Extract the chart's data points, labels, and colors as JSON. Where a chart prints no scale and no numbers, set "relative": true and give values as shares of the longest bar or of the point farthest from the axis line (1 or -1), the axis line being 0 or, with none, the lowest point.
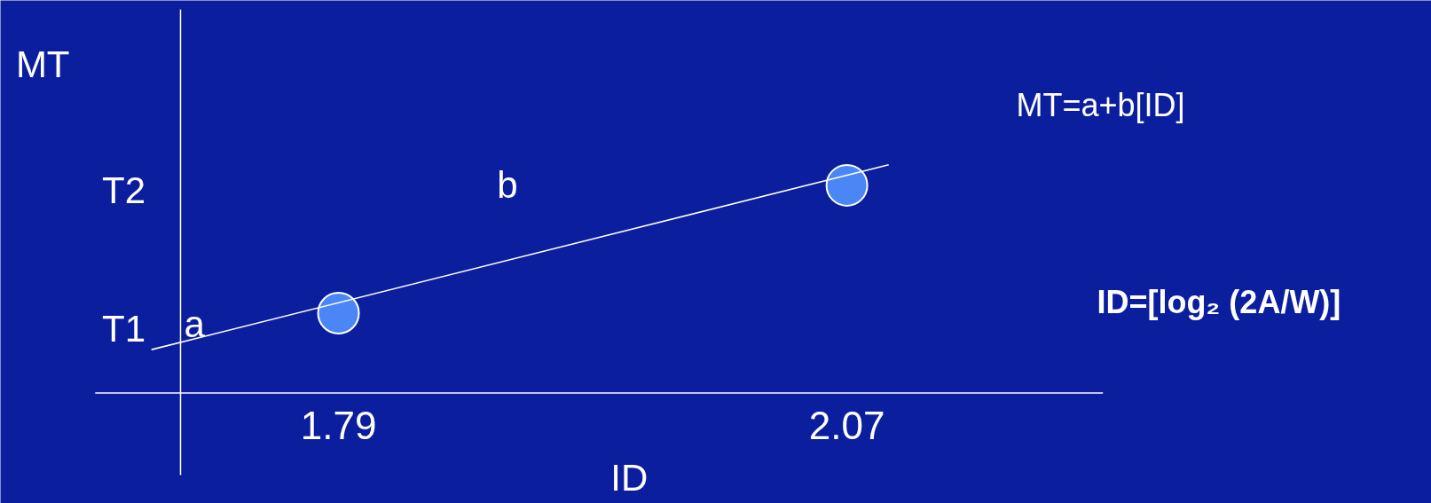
{
  "chart_data": {
    "type": "scatter",
    "relative": true,
    "xlabel": "ID",
    "ylabel": "MT",
    "xlim": [
      1.656,
      2.211
    ],
    "xticks": [
      1.79,
      2.07
    ],
    "series": [
      {
        "marker": "circle",
        "color": "#4a86f5",
        "x": [
          1.79,
          2.07
        ],
        "values": [
          0.35,
          0.91
        ]
      },
      {
        "type": "line",
        "color": "#ffffff",
        "x": [
          1.687,
          2.093
        ],
        "values": [
          0.19,
          1
        ]
      }
    ],
    "ref_lines": [
      {
        "axis": "x",
        "value": 1.703,
        "color": "#ffffff"
      }
    ],
    "annotations": [
      "MT=a+b[ID]",
      "ID=[log₂ (2A/W)]",
      "T1",
      "T2",
      "b",
      {
        "text": "a",
        "x": 1.703,
        "y": 0.21
      }
    ]
  }
}
